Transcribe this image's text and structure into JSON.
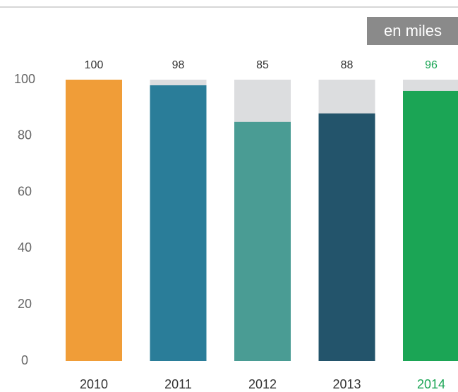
{
  "chart_data": {
    "type": "bar",
    "unit_label": "en miles",
    "categories": [
      "2010",
      "2011",
      "2012",
      "2013",
      "2014"
    ],
    "values": [
      100,
      98,
      85,
      88,
      96
    ],
    "colors": [
      "#f09d38",
      "#2a7d99",
      "#4a9c94",
      "#23546b",
      "#1ba555"
    ],
    "track_color": "#dcdddf",
    "highlight_index": 4,
    "ylim": [
      0,
      100
    ],
    "yticks": [
      0,
      20,
      40,
      60,
      80,
      100
    ]
  }
}
